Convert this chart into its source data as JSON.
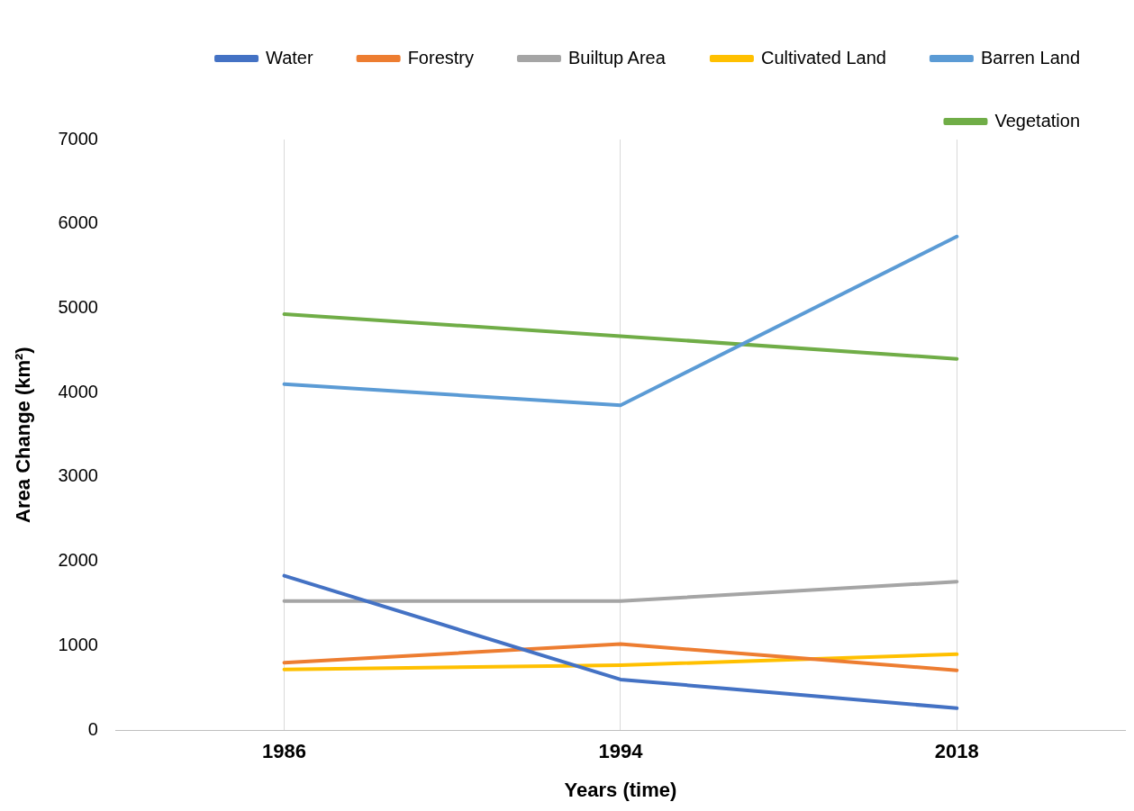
{
  "chart_data": {
    "type": "line",
    "xlabel": "Years (time)",
    "ylabel": "Area Change (km²)",
    "categories": [
      "1986",
      "1994",
      "2018"
    ],
    "series": [
      {
        "name": "Water",
        "color": "#4472c4",
        "values": [
          1830,
          600,
          260
        ]
      },
      {
        "name": "Forestry",
        "color": "#ed7d31",
        "values": [
          800,
          1020,
          710
        ]
      },
      {
        "name": "Builtup Area",
        "color": "#a5a5a5",
        "values": [
          1530,
          1530,
          1760
        ]
      },
      {
        "name": "Cultivated Land",
        "color": "#ffc000",
        "values": [
          720,
          770,
          900
        ]
      },
      {
        "name": "Barren Land",
        "color": "#5b9bd5",
        "values": [
          4100,
          3850,
          5850
        ]
      },
      {
        "name": "Vegetation",
        "color": "#70ad47",
        "values": [
          4930,
          4670,
          4400
        ]
      }
    ],
    "ylim": [
      0,
      7000
    ],
    "yticks": [
      0,
      1000,
      2000,
      3000,
      4000,
      5000,
      6000,
      7000
    ],
    "grid": "x",
    "legend": "top",
    "marker": "none",
    "line_style": "solid"
  }
}
